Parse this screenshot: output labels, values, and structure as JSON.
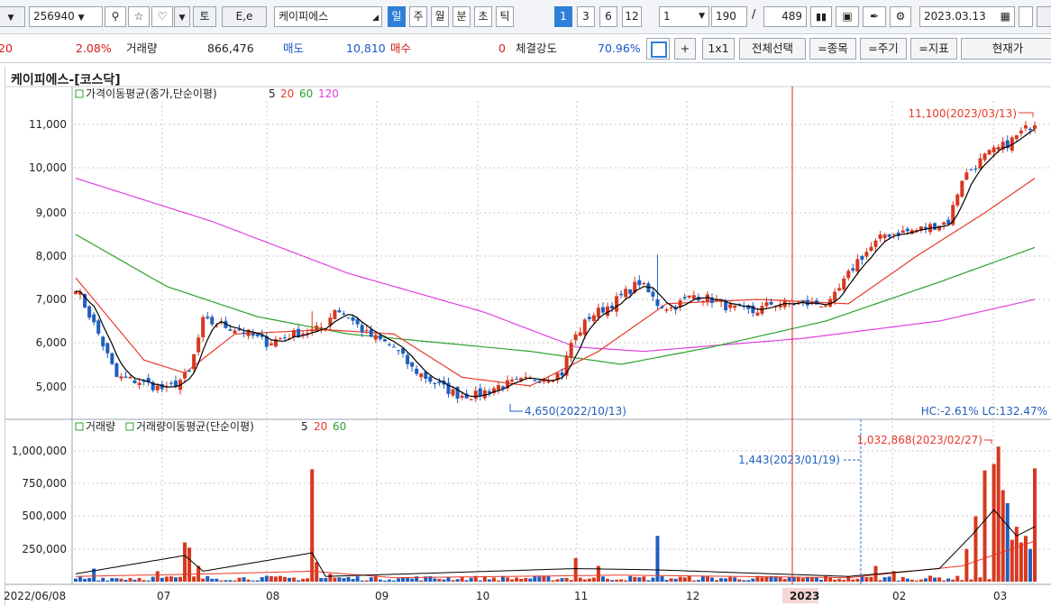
{
  "toolbar": {
    "code": "256940",
    "name": "케이피에스",
    "btn_to": "토",
    "btn_ee": "E,e",
    "periods": [
      "일",
      "주",
      "월",
      "분",
      "초",
      "틱"
    ],
    "active_period": "일",
    "nums": [
      "1",
      "3",
      "6",
      "12"
    ],
    "unit": "1",
    "count": "190",
    "slash": "/",
    "total": "489",
    "date": "2023.03.13"
  },
  "infobar": {
    "change": "20",
    "rate": "2.08%",
    "volume_label": "거래량",
    "volume_value": "866,476",
    "sell_label": "매도",
    "sell_value": "10,810",
    "buy_label": "매수",
    "buy_value": "0",
    "strength_label": "체결강도",
    "strength_value": "70.96%",
    "plus": "+",
    "layout": "1x1",
    "select_all": "전체선택",
    "eq_item": "=종목",
    "eq_period": "=주기",
    "eq_indicator": "=지표",
    "current_price": "현재가"
  },
  "chart": {
    "title": "케이피에스-[코스닥]"
  },
  "chart_data": [
    {
      "type": "candlestick",
      "legend": [
        "가격이동평균(종가,단순이평)",
        "5",
        "20",
        "60",
        "120"
      ],
      "y_ticks": [
        "11,000",
        "10,000",
        "9,000",
        "8,000",
        "7,000",
        "6,000",
        "5,000"
      ],
      "ylim": [
        4500,
        11800
      ],
      "max_label": "11,100(2023/03/13)",
      "min_label": "4,650(2022/10/13)",
      "hc_lc": "HC:-2.61%  LC:132.47%",
      "colors": {
        "up": "#d7371e",
        "down": "#1f5fbf",
        "ma5": "#000000",
        "ma20": "#e8392a",
        "ma60": "#2fa02f",
        "ma120": "#e040e0"
      },
      "close_keyframes": [
        [
          0,
          7300
        ],
        [
          5,
          6200
        ],
        [
          9,
          5200
        ],
        [
          14,
          5100
        ],
        [
          20,
          4900
        ],
        [
          25,
          5300
        ],
        [
          28,
          6500
        ],
        [
          36,
          6300
        ],
        [
          42,
          6000
        ],
        [
          48,
          6200
        ],
        [
          53,
          6300
        ],
        [
          55,
          6400
        ],
        [
          57,
          6800
        ],
        [
          60,
          6600
        ],
        [
          64,
          6200
        ],
        [
          70,
          5900
        ],
        [
          74,
          5400
        ],
        [
          80,
          5000
        ],
        [
          84,
          4800
        ],
        [
          88,
          4780
        ],
        [
          93,
          5000
        ],
        [
          98,
          5100
        ],
        [
          103,
          5200
        ],
        [
          107,
          5300
        ],
        [
          109,
          6000
        ],
        [
          113,
          6600
        ],
        [
          118,
          6900
        ],
        [
          124,
          7400
        ],
        [
          128,
          6900
        ],
        [
          131,
          6800
        ],
        [
          136,
          7100
        ],
        [
          140,
          7000
        ],
        [
          144,
          6800
        ],
        [
          149,
          6700
        ],
        [
          153,
          6900
        ],
        [
          160,
          6900
        ],
        [
          166,
          6900
        ],
        [
          172,
          7900
        ],
        [
          178,
          8500
        ],
        [
          185,
          8600
        ],
        [
          192,
          8800
        ],
        [
          195,
          9800
        ],
        [
          200,
          10300
        ],
        [
          205,
          10600
        ],
        [
          211,
          11100
        ]
      ],
      "ma_keyframes": {
        "ma120": [
          [
            0,
            9800
          ],
          [
            30,
            8800
          ],
          [
            60,
            7600
          ],
          [
            90,
            6700
          ],
          [
            110,
            5900
          ],
          [
            125,
            5800
          ],
          [
            160,
            6100
          ],
          [
            190,
            6500
          ],
          [
            211,
            7000
          ]
        ],
        "ma60": [
          [
            0,
            8500
          ],
          [
            20,
            7300
          ],
          [
            40,
            6600
          ],
          [
            60,
            6200
          ],
          [
            80,
            6000
          ],
          [
            100,
            5800
          ],
          [
            120,
            5500
          ],
          [
            140,
            5900
          ],
          [
            165,
            6500
          ],
          [
            190,
            7400
          ],
          [
            211,
            8200
          ]
        ],
        "ma20": [
          [
            0,
            7500
          ],
          [
            15,
            5600
          ],
          [
            24,
            5300
          ],
          [
            35,
            6200
          ],
          [
            55,
            6300
          ],
          [
            70,
            6200
          ],
          [
            85,
            5200
          ],
          [
            100,
            5000
          ],
          [
            115,
            5800
          ],
          [
            130,
            6900
          ],
          [
            150,
            7000
          ],
          [
            170,
            6900
          ],
          [
            185,
            8000
          ],
          [
            200,
            9000
          ],
          [
            211,
            9800
          ]
        ]
      }
    },
    {
      "type": "bar",
      "legend": [
        "거래량",
        "거래량이동평균(단순이평)",
        "5",
        "20",
        "60"
      ],
      "y_ticks": [
        "1,000,000",
        "750,000",
        "500,000",
        "250,000"
      ],
      "ylim": [
        0,
        1100000
      ],
      "max_label": "1,032,868(2023/02/27)",
      "cursor_label": "1,443(2023/01/19)",
      "spikes": [
        [
          4,
          100000
        ],
        [
          18,
          80000
        ],
        [
          24,
          300000
        ],
        [
          25,
          260000
        ],
        [
          27,
          120000
        ],
        [
          52,
          860000
        ],
        [
          53,
          150000
        ],
        [
          56,
          60000
        ],
        [
          110,
          180000
        ],
        [
          115,
          120000
        ],
        [
          128,
          350000
        ],
        [
          176,
          120000
        ],
        [
          180,
          80000
        ],
        [
          196,
          250000
        ],
        [
          198,
          500000
        ],
        [
          200,
          850000
        ],
        [
          202,
          900000
        ],
        [
          203,
          1032868
        ],
        [
          204,
          700000
        ],
        [
          205,
          600000
        ],
        [
          206,
          320000
        ],
        [
          207,
          420000
        ],
        [
          208,
          300000
        ],
        [
          209,
          350000
        ],
        [
          210,
          250000
        ],
        [
          211,
          866476
        ]
      ],
      "vol_ma5": [
        [
          0,
          60000
        ],
        [
          24,
          200000
        ],
        [
          28,
          80000
        ],
        [
          52,
          220000
        ],
        [
          55,
          40000
        ],
        [
          110,
          100000
        ],
        [
          128,
          90000
        ],
        [
          170,
          40000
        ],
        [
          190,
          100000
        ],
        [
          197,
          350000
        ],
        [
          202,
          550000
        ],
        [
          207,
          350000
        ],
        [
          211,
          420000
        ]
      ],
      "vol_ma20": [
        [
          0,
          40000
        ],
        [
          30,
          60000
        ],
        [
          52,
          80000
        ],
        [
          70,
          30000
        ],
        [
          120,
          50000
        ],
        [
          170,
          30000
        ],
        [
          195,
          120000
        ],
        [
          211,
          310000
        ]
      ]
    }
  ],
  "xaxis": {
    "labels": [
      "2022/06/08",
      "07",
      "08",
      "09",
      "10",
      "11",
      "12",
      "2023",
      "02",
      "03"
    ]
  }
}
